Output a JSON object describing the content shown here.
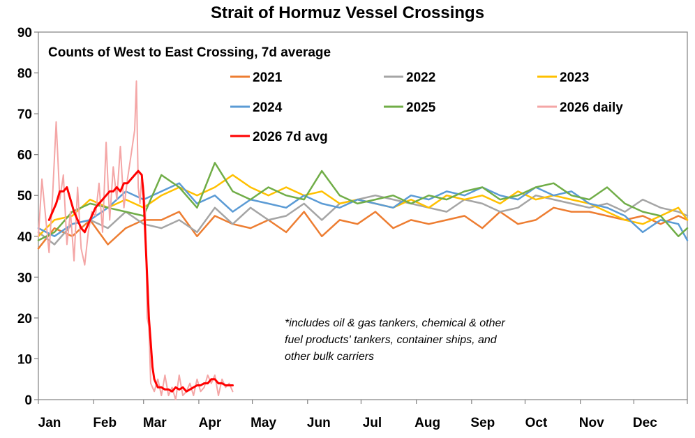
{
  "chart_data": {
    "type": "line",
    "title": "Strait of Hormuz Vessel Crossings",
    "subtitle": "Counts of West to East Crossing, 7d average",
    "xlabel": "",
    "ylabel": "",
    "ylim": [
      0,
      90
    ],
    "yticks": [
      0,
      10,
      20,
      30,
      40,
      50,
      60,
      70,
      80,
      90
    ],
    "xlim": [
      1,
      365
    ],
    "month_labels": [
      "Jan",
      "Feb",
      "Mar",
      "Apr",
      "May",
      "Jun",
      "Jul",
      "Aug",
      "Sep",
      "Oct",
      "Nov",
      "Dec"
    ],
    "month_start_days": [
      1,
      32,
      60,
      91,
      121,
      152,
      182,
      213,
      244,
      274,
      305,
      335
    ],
    "annotation": [
      "*includes oil & gas tankers, chemical & other",
      "fuel products' tankers, container ships, and",
      "other bulk carriers"
    ],
    "series": [
      {
        "name": "2021",
        "color": "#ED7D31",
        "width": 2.5,
        "x": [
          1,
          10,
          20,
          30,
          40,
          50,
          60,
          70,
          80,
          90,
          100,
          110,
          120,
          130,
          140,
          150,
          160,
          170,
          180,
          190,
          200,
          210,
          220,
          230,
          240,
          250,
          260,
          270,
          280,
          290,
          300,
          310,
          320,
          330,
          340,
          350,
          360,
          365
        ],
        "y": [
          37,
          42,
          40,
          44,
          38,
          42,
          44,
          44,
          46,
          40,
          45,
          43,
          42,
          44,
          41,
          46,
          40,
          44,
          43,
          46,
          42,
          44,
          43,
          44,
          45,
          42,
          46,
          43,
          44,
          47,
          46,
          46,
          45,
          44,
          45,
          43,
          45,
          44
        ]
      },
      {
        "name": "2022",
        "color": "#A5A5A5",
        "width": 2.5,
        "x": [
          1,
          10,
          20,
          30,
          40,
          50,
          60,
          70,
          80,
          90,
          100,
          110,
          120,
          130,
          140,
          150,
          160,
          170,
          180,
          190,
          200,
          210,
          220,
          230,
          240,
          250,
          260,
          270,
          280,
          290,
          300,
          310,
          320,
          330,
          340,
          350,
          360,
          365
        ],
        "y": [
          41,
          38,
          43,
          44,
          42,
          46,
          43,
          42,
          44,
          41,
          47,
          43,
          47,
          44,
          45,
          48,
          44,
          48,
          49,
          50,
          49,
          48,
          47,
          46,
          49,
          48,
          46,
          47,
          50,
          49,
          48,
          47,
          48,
          46,
          49,
          47,
          46,
          45
        ]
      },
      {
        "name": "2023",
        "color": "#FFC000",
        "width": 2.5,
        "x": [
          1,
          10,
          20,
          30,
          40,
          50,
          60,
          70,
          80,
          90,
          100,
          110,
          120,
          130,
          140,
          150,
          160,
          170,
          180,
          190,
          200,
          210,
          220,
          230,
          240,
          250,
          260,
          270,
          280,
          290,
          300,
          310,
          320,
          330,
          340,
          350,
          360,
          365
        ],
        "y": [
          40,
          44,
          45,
          49,
          47,
          49,
          47,
          50,
          52,
          50,
          52,
          55,
          52,
          50,
          52,
          50,
          51,
          48,
          49,
          48,
          47,
          49,
          47,
          50,
          49,
          50,
          48,
          51,
          49,
          50,
          49,
          48,
          46,
          44,
          43,
          45,
          47,
          44
        ]
      },
      {
        "name": "2024",
        "color": "#5B9BD5",
        "width": 2.5,
        "x": [
          1,
          10,
          20,
          30,
          40,
          50,
          60,
          70,
          80,
          90,
          100,
          110,
          120,
          130,
          140,
          150,
          160,
          170,
          180,
          190,
          200,
          210,
          220,
          230,
          240,
          250,
          260,
          270,
          280,
          290,
          300,
          310,
          320,
          330,
          340,
          350,
          360,
          365
        ],
        "y": [
          42,
          40,
          43,
          44,
          47,
          51,
          49,
          51,
          53,
          48,
          50,
          46,
          49,
          48,
          47,
          50,
          48,
          47,
          49,
          48,
          47,
          50,
          49,
          51,
          50,
          52,
          50,
          49,
          52,
          50,
          51,
          48,
          47,
          45,
          41,
          44,
          43,
          39
        ]
      },
      {
        "name": "2025",
        "color": "#70AD47",
        "width": 2.5,
        "x": [
          1,
          10,
          20,
          30,
          40,
          50,
          60,
          70,
          80,
          90,
          100,
          110,
          120,
          130,
          140,
          150,
          160,
          170,
          180,
          190,
          200,
          210,
          220,
          230,
          240,
          250,
          260,
          270,
          280,
          290,
          300,
          310,
          320,
          330,
          340,
          350,
          360,
          365
        ],
        "y": [
          39,
          41,
          46,
          48,
          47,
          46,
          45,
          55,
          52,
          47,
          58,
          51,
          49,
          52,
          50,
          49,
          56,
          50,
          48,
          49,
          50,
          48,
          50,
          49,
          51,
          52,
          49,
          50,
          52,
          53,
          50,
          49,
          52,
          48,
          46,
          45,
          40,
          42
        ]
      },
      {
        "name": "2026 daily",
        "color": "#F4A6A6",
        "width": 2,
        "x": [
          1,
          3,
          5,
          7,
          9,
          11,
          13,
          15,
          17,
          19,
          21,
          23,
          25,
          27,
          29,
          31,
          33,
          35,
          37,
          39,
          41,
          43,
          45,
          47,
          49,
          51,
          53,
          55,
          56,
          57,
          58,
          59,
          60,
          61,
          62,
          63,
          64,
          66,
          68,
          70,
          72,
          74,
          76,
          78,
          80,
          82,
          84,
          86,
          88,
          90,
          92,
          94,
          96,
          98,
          100,
          102,
          104,
          106,
          108,
          110
        ],
        "y": [
          40,
          54,
          45,
          36,
          50,
          68,
          49,
          55,
          38,
          46,
          34,
          52,
          37,
          33,
          41,
          46,
          45,
          53,
          41,
          63,
          44,
          57,
          49,
          62,
          47,
          54,
          60,
          66,
          78,
          52,
          48,
          55,
          52,
          46,
          20,
          18,
          4,
          2,
          5,
          1,
          6,
          1,
          3,
          0,
          6,
          1,
          2,
          4,
          1,
          5,
          2,
          3,
          6,
          4,
          6,
          1,
          5,
          3,
          4,
          2
        ]
      },
      {
        "name": "2026 7d avg",
        "color": "#FF0000",
        "width": 3,
        "x": [
          7,
          9,
          11,
          13,
          15,
          17,
          19,
          21,
          23,
          25,
          27,
          29,
          31,
          33,
          35,
          37,
          39,
          41,
          43,
          45,
          47,
          49,
          51,
          53,
          55,
          57,
          59,
          60,
          61,
          62,
          63,
          64,
          65,
          66,
          67,
          68,
          70,
          72,
          74,
          76,
          78,
          80,
          82,
          84,
          86,
          88,
          90,
          92,
          94,
          96,
          98,
          100,
          102,
          104,
          106,
          108,
          110
        ],
        "y": [
          44,
          46,
          48,
          51,
          51,
          52,
          49,
          46,
          44,
          42,
          41,
          43,
          45,
          47,
          48,
          49,
          50,
          51,
          51,
          52,
          51,
          53,
          53,
          54,
          55,
          56,
          55,
          50,
          40,
          30,
          20,
          14,
          8,
          5,
          4,
          3,
          3,
          2.5,
          2.5,
          2,
          3,
          2.5,
          3,
          2,
          2.5,
          3,
          3.5,
          3.5,
          4,
          4,
          5,
          5,
          4,
          4,
          3.5,
          3.5,
          3.5
        ]
      }
    ],
    "legend": [
      {
        "label": "2021",
        "color": "#ED7D31"
      },
      {
        "label": "2022",
        "color": "#A5A5A5"
      },
      {
        "label": "2023",
        "color": "#FFC000"
      },
      {
        "label": "2024",
        "color": "#5B9BD5"
      },
      {
        "label": "2025",
        "color": "#70AD47"
      },
      {
        "label": "2026 daily",
        "color": "#F4A6A6"
      },
      {
        "label": "2026 7d avg",
        "color": "#FF0000"
      }
    ]
  }
}
